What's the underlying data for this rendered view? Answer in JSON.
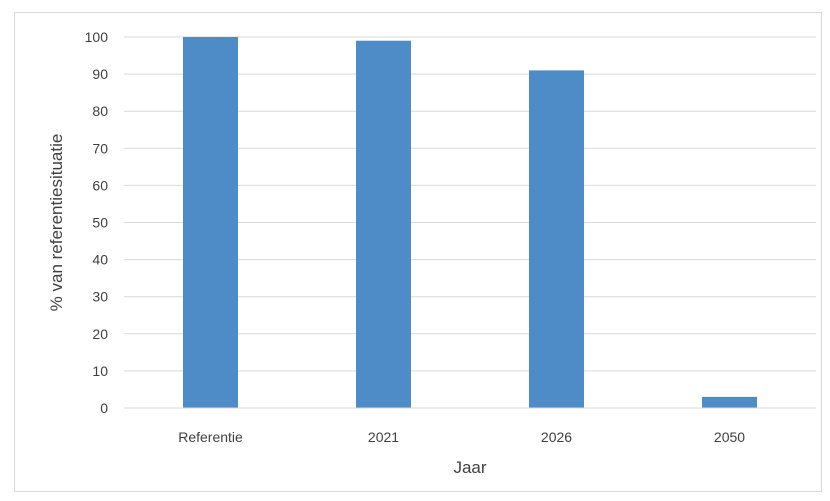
{
  "chart_data": {
    "type": "bar",
    "categories": [
      "Referentie",
      "2021",
      "2026",
      "2050"
    ],
    "values": [
      100,
      99,
      91,
      3
    ],
    "title": "",
    "xlabel": "Jaar",
    "ylabel": "% van referentiesituatie",
    "ylim": [
      0,
      100
    ],
    "yticks": [
      0,
      10,
      20,
      30,
      40,
      50,
      60,
      70,
      80,
      90,
      100
    ],
    "grid": true,
    "legend": "none",
    "bar_color": "#4e8cc8",
    "grid_color": "#d9d9d9",
    "text_color": "#404040"
  }
}
